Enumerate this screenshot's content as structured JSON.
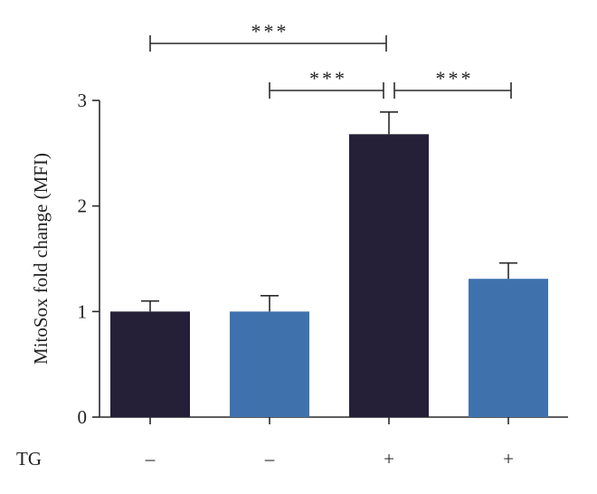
{
  "chart_data": {
    "type": "bar",
    "ylabel": "MitoSox fold change (MFI)",
    "xlabel": "",
    "ylim": [
      0,
      3
    ],
    "yticks": [
      0,
      1,
      2,
      3
    ],
    "grid": false,
    "row_label": "TG",
    "categories": [
      "–",
      "–",
      "+",
      "+"
    ],
    "values": [
      1.0,
      1.0,
      2.68,
      1.31
    ],
    "errors": [
      0.1,
      0.15,
      0.21,
      0.15
    ],
    "bar_colors": [
      "#252038",
      "#3f72ad",
      "#252038",
      "#3f72ad"
    ],
    "significance": [
      {
        "from": 0,
        "to": 2,
        "label": "***"
      },
      {
        "from": 1,
        "to": 2,
        "label": "***"
      },
      {
        "from": 2,
        "to": 3,
        "label": "***"
      }
    ]
  }
}
